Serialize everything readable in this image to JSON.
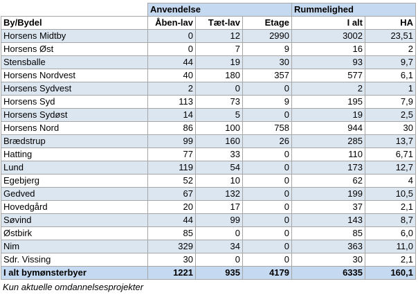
{
  "table": {
    "group_headers": [
      "Anvendelse",
      "Rummelighed"
    ],
    "columns": [
      "By/Bydel",
      "Åben-lav",
      "Tæt-lav",
      "Etage",
      "I alt",
      "HA"
    ],
    "rows": [
      [
        "Horsens Midtby",
        "0",
        "12",
        "2990",
        "3002",
        "23,51"
      ],
      [
        "Horsens Øst",
        "0",
        "7",
        "9",
        "16",
        "2"
      ],
      [
        "Stensballe",
        "44",
        "19",
        "30",
        "93",
        "9,7"
      ],
      [
        "Horsens Nordvest",
        "40",
        "180",
        "357",
        "577",
        "6,1"
      ],
      [
        "Horsens Sydvest",
        "2",
        "0",
        "0",
        "2",
        "1"
      ],
      [
        "Horsens Syd",
        "113",
        "73",
        "9",
        "195",
        "7,9"
      ],
      [
        "Horsens Sydøst",
        "14",
        "5",
        "0",
        "19",
        "2,5"
      ],
      [
        "Horsens Nord",
        "86",
        "100",
        "758",
        "944",
        "30"
      ],
      [
        "Brædstrup",
        "99",
        "160",
        "26",
        "285",
        "13,7"
      ],
      [
        "Hatting",
        "77",
        "33",
        "0",
        "110",
        "6,71"
      ],
      [
        "Lund",
        "119",
        "54",
        "0",
        "173",
        "12,7"
      ],
      [
        "Egebjerg",
        "52",
        "10",
        "0",
        "62",
        "4"
      ],
      [
        "Gedved",
        "67",
        "132",
        "0",
        "199",
        "10,5"
      ],
      [
        "Hovedgård",
        "20",
        "17",
        "0",
        "37",
        "2,1"
      ],
      [
        "Søvind",
        "44",
        "99",
        "0",
        "143",
        "8,7"
      ],
      [
        "Østbirk",
        "85",
        "0",
        "0",
        "85",
        "6,0"
      ],
      [
        "Nim",
        "329",
        "34",
        "0",
        "363",
        "11,0"
      ],
      [
        "Sdr. Vissing",
        "30",
        "0",
        "0",
        "30",
        "2,1"
      ]
    ],
    "total": [
      "I alt bymønsterbyer",
      "1221",
      "935",
      "4179",
      "6335",
      "160,1"
    ],
    "footnote": "Kun aktuelle omdannelsesprojekter"
  }
}
